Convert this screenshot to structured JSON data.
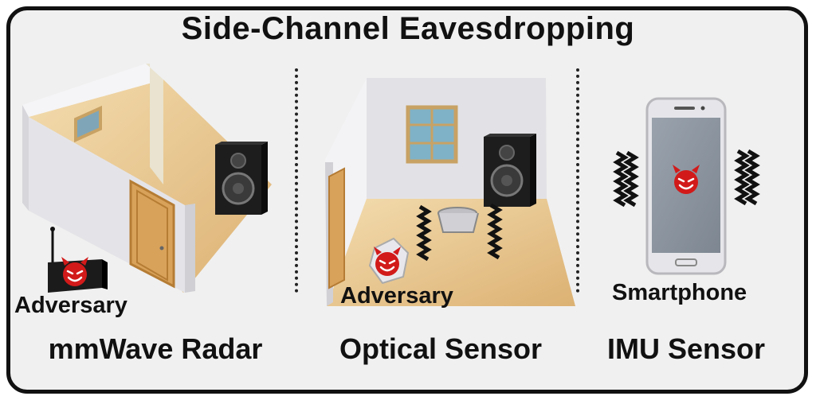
{
  "title": "Side-Channel Eavesdropping",
  "panels": [
    {
      "caption": "mmWave Radar",
      "adversary_label": "Adversary"
    },
    {
      "caption": "Optical Sensor",
      "adversary_label": "Adversary"
    },
    {
      "caption": "IMU Sensor",
      "device_label": "Smartphone"
    }
  ],
  "colors": {
    "adversary_red": "#d21a1a",
    "floor": "#e7c48a",
    "wall": "#e6e6ea"
  }
}
